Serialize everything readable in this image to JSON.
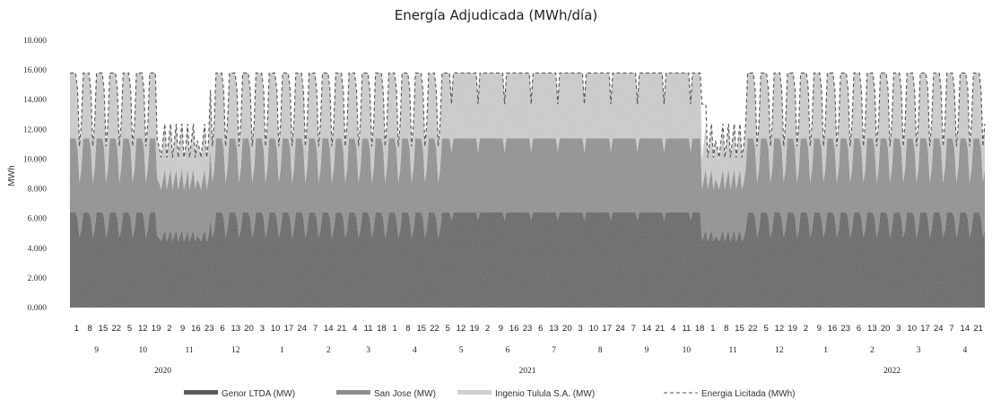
{
  "chart_data": {
    "type": "area",
    "title": "Energía Adjudicada (MWh/día)",
    "ylabel": "MWh",
    "xlabel": "",
    "ylim": [
      0,
      18000
    ],
    "yticks": [
      "0.000",
      "2.000",
      "4.000",
      "6.000",
      "8.000",
      "10.000",
      "12.000",
      "14.000",
      "16.000",
      "18.000"
    ],
    "grid": false,
    "legend_position": "bottom",
    "stacked": true,
    "x_day_labels": [
      "1",
      "8",
      "15",
      "22",
      "5",
      "12",
      "19",
      "2",
      "9",
      "16",
      "23",
      "6",
      "13",
      "20",
      "3",
      "10",
      "17",
      "24",
      "7",
      "14",
      "21",
      "4",
      "11",
      "18",
      "1",
      "8",
      "15",
      "22",
      "5",
      "12",
      "19",
      "2",
      "9",
      "16",
      "23",
      "6",
      "13",
      "20",
      "3",
      "10",
      "17",
      "24",
      "7",
      "14",
      "21",
      "4",
      "11",
      "18",
      "1",
      "8",
      "15",
      "22",
      "5",
      "12",
      "19",
      "2",
      "9",
      "16",
      "23",
      "6",
      "13",
      "20",
      "3",
      "10",
      "17",
      "24",
      "7",
      "14",
      "21"
    ],
    "x_month_groups": [
      {
        "label": "9",
        "start": 0,
        "count": 4
      },
      {
        "label": "10",
        "start": 4,
        "count": 3
      },
      {
        "label": "11",
        "start": 7,
        "count": 4
      },
      {
        "label": "12",
        "start": 11,
        "count": 3
      },
      {
        "label": "1",
        "start": 14,
        "count": 4
      },
      {
        "label": "2",
        "start": 18,
        "count": 3
      },
      {
        "label": "3",
        "start": 21,
        "count": 3
      },
      {
        "label": "4",
        "start": 24,
        "count": 4
      },
      {
        "label": "5",
        "start": 28,
        "count": 3
      },
      {
        "label": "6",
        "start": 31,
        "count": 4
      },
      {
        "label": "7",
        "start": 35,
        "count": 3
      },
      {
        "label": "8",
        "start": 38,
        "count": 4
      },
      {
        "label": "9",
        "start": 42,
        "count": 3
      },
      {
        "label": "10",
        "start": 45,
        "count": 3
      },
      {
        "label": "11",
        "start": 48,
        "count": 4
      },
      {
        "label": "12",
        "start": 52,
        "count": 3
      },
      {
        "label": "1",
        "start": 55,
        "count": 4
      },
      {
        "label": "2",
        "start": 59,
        "count": 3
      },
      {
        "label": "3",
        "start": 62,
        "count": 4
      },
      {
        "label": "4",
        "start": 66,
        "count": 3
      }
    ],
    "x_year_groups": [
      {
        "label": "2020",
        "start": 0,
        "count": 14
      },
      {
        "label": "2021",
        "start": 14,
        "count": 41
      },
      {
        "label": "2022",
        "start": 55,
        "count": 14
      }
    ],
    "series": [
      {
        "name": "Genor LTDA (MW)",
        "kind": "area",
        "color": "#5a5a5a",
        "plateau": 6400,
        "trough": 3800
      },
      {
        "name": "San Jose (MW)",
        "kind": "area",
        "color": "#8e8e8e",
        "plateau": 5000,
        "trough": 3000
      },
      {
        "name": "Ingenio Tulula S.A. (MW)",
        "kind": "area",
        "color": "#cfcfcf",
        "plateau": 4400,
        "trough": 1200
      },
      {
        "name": "Energia Licitada (MWh)",
        "kind": "line-dashed",
        "color": "#555555",
        "plateau": 15800,
        "trough": 8200
      }
    ],
    "weekly_pattern": {
      "working_day_total": 15800,
      "weekend_total": 8200,
      "flat_period": {
        "from_month": "5",
        "to_month": "10",
        "year": "2021",
        "total": 15800,
        "dip_total": 12800
      }
    }
  }
}
